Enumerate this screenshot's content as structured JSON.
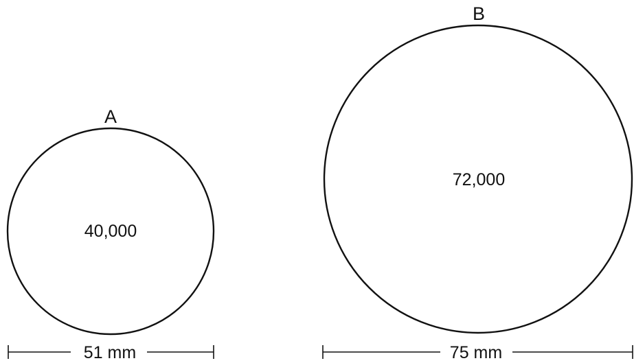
{
  "circles": [
    {
      "label": "A",
      "value": "40,000",
      "diameter_label": "51 mm"
    },
    {
      "label": "B",
      "value": "72,000",
      "diameter_label": "75 mm"
    }
  ],
  "colors": {
    "stroke": "#111111",
    "background": "#ffffff"
  }
}
